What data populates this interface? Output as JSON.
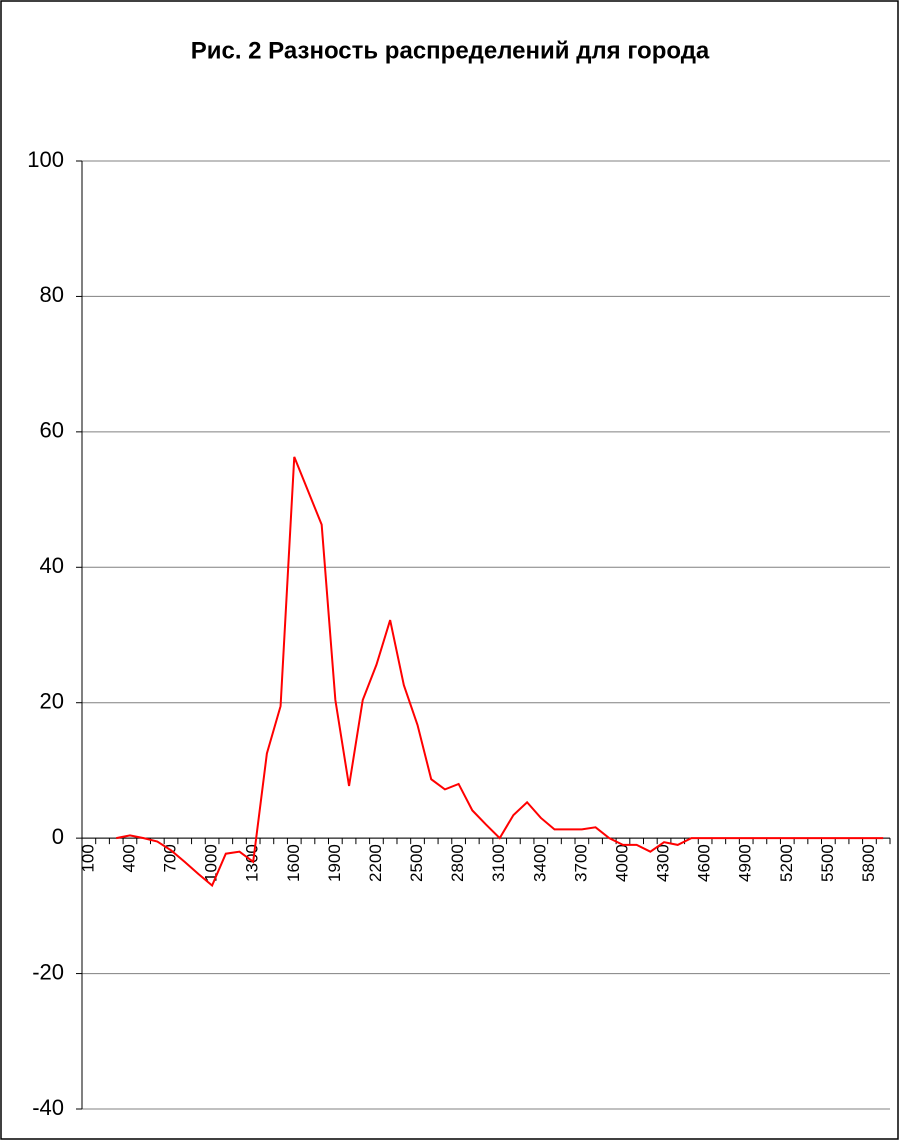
{
  "chart_data": {
    "type": "line",
    "title": "Рис. 2 Разность распределений для города",
    "categories": [
      "100",
      null,
      null,
      "400",
      null,
      null,
      "700",
      null,
      null,
      "1000",
      null,
      null,
      "1300",
      null,
      null,
      "1600",
      null,
      null,
      "1900",
      null,
      null,
      "2200",
      null,
      null,
      "2500",
      null,
      null,
      "2800",
      null,
      null,
      "3100",
      null,
      null,
      "3400",
      null,
      null,
      "3700",
      null,
      null,
      "4000",
      null,
      null,
      "4300",
      null,
      null,
      "4600",
      null,
      null,
      "4900",
      null,
      null,
      "5200",
      null,
      null,
      "5500",
      null,
      null,
      "5800",
      null
    ],
    "series": [
      {
        "color": "#ff0000",
        "values": [
          null,
          null,
          0,
          0.4,
          0,
          -0.5,
          -1.8,
          -3.5,
          -5.3,
          -7,
          -2.3,
          -2,
          -3.5,
          12.5,
          19.5,
          56.3,
          51.3,
          46.3,
          20.4,
          7.7,
          20.4,
          25.6,
          32.2,
          22.6,
          16.7,
          8.7,
          7.2,
          8,
          4.1,
          2,
          0,
          3.4,
          5.3,
          3,
          1.3,
          1.3,
          1.3,
          1.6,
          0,
          -1,
          -1,
          -2,
          -0.6,
          -1,
          0,
          0,
          0,
          0,
          0,
          0,
          0,
          0,
          0,
          0,
          0,
          0,
          0,
          0,
          0
        ]
      }
    ],
    "ylim": [
      -40,
      100
    ],
    "yticks": [
      -40,
      -20,
      0,
      20,
      40,
      60,
      80,
      100
    ],
    "grid": true
  }
}
